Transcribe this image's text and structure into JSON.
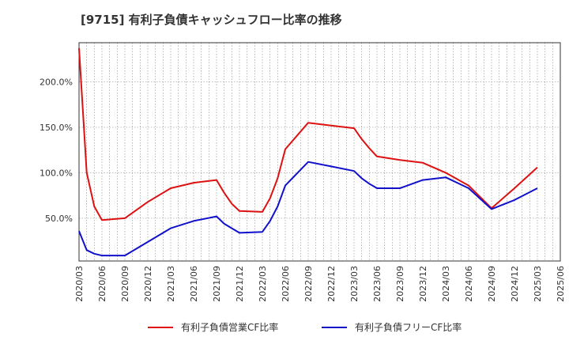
{
  "chart_data": {
    "type": "line",
    "title": "[9715]  有利子負債キャッシュフロー比率の推移",
    "xlabel": "",
    "ylabel": "",
    "x_ticks": [
      "2020/03",
      "2020/06",
      "2020/09",
      "2020/12",
      "2021/03",
      "2021/06",
      "2021/09",
      "2021/12",
      "2022/03",
      "2022/06",
      "2022/09",
      "2022/12",
      "2023/03",
      "2023/06",
      "2023/09",
      "2023/12",
      "2024/03",
      "2024/06",
      "2024/09",
      "2024/12",
      "2025/03",
      "2025/06"
    ],
    "y_ticks": [
      {
        "value": 50,
        "label": "50.0%"
      },
      {
        "value": 100,
        "label": "100.0%"
      },
      {
        "value": 150,
        "label": "150.0%"
      },
      {
        "value": 200,
        "label": "200.0%"
      }
    ],
    "ylim": [
      3,
      243
    ],
    "xlim_months": [
      0,
      63
    ],
    "grid": true,
    "legend_position": "bottom",
    "series": [
      {
        "name": "有利子負債営業CF比率",
        "color": "#dd1111",
        "points": [
          [
            0,
            237
          ],
          [
            1,
            100
          ],
          [
            2,
            63
          ],
          [
            3,
            48
          ],
          [
            6,
            50
          ],
          [
            9,
            68
          ],
          [
            12,
            83
          ],
          [
            15,
            89
          ],
          [
            18,
            92
          ],
          [
            19,
            78
          ],
          [
            20,
            66
          ],
          [
            21,
            58
          ],
          [
            24,
            57
          ],
          [
            25,
            72
          ],
          [
            26,
            94
          ],
          [
            27,
            126
          ],
          [
            30,
            155
          ],
          [
            33,
            152
          ],
          [
            36,
            149
          ],
          [
            37,
            137
          ],
          [
            38,
            127
          ],
          [
            39,
            118
          ],
          [
            42,
            114
          ],
          [
            45,
            111
          ],
          [
            48,
            100
          ],
          [
            51,
            86
          ],
          [
            54,
            61
          ],
          [
            57,
            83
          ],
          [
            60,
            106
          ]
        ]
      },
      {
        "name": "有利子負債フリーCF比率",
        "color": "#1111cc",
        "points": [
          [
            0,
            36
          ],
          [
            1,
            15
          ],
          [
            2,
            11
          ],
          [
            3,
            9
          ],
          [
            6,
            9
          ],
          [
            9,
            24
          ],
          [
            12,
            39
          ],
          [
            15,
            47
          ],
          [
            18,
            52
          ],
          [
            19,
            44
          ],
          [
            20,
            39
          ],
          [
            21,
            34
          ],
          [
            24,
            35
          ],
          [
            25,
            47
          ],
          [
            26,
            63
          ],
          [
            27,
            86
          ],
          [
            30,
            112
          ],
          [
            33,
            107
          ],
          [
            36,
            102
          ],
          [
            37,
            94
          ],
          [
            38,
            88
          ],
          [
            39,
            83
          ],
          [
            42,
            83
          ],
          [
            45,
            92
          ],
          [
            48,
            95
          ],
          [
            51,
            83
          ],
          [
            54,
            60
          ],
          [
            57,
            70
          ],
          [
            60,
            83
          ]
        ]
      }
    ]
  }
}
